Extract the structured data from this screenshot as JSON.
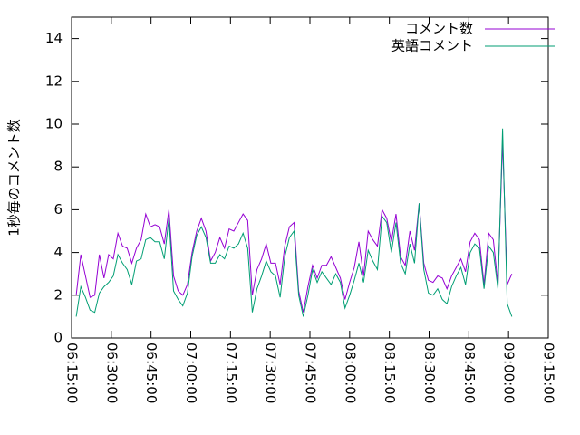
{
  "chart_data": {
    "type": "line",
    "ylabel": "1秒毎のコメント数",
    "x": [
      "06:16:45",
      "06:18:30",
      "06:20:15",
      "06:22:00",
      "06:23:45",
      "06:25:30",
      "06:27:15",
      "06:29:00",
      "06:30:45",
      "06:32:30",
      "06:34:15",
      "06:36:00",
      "06:37:45",
      "06:39:30",
      "06:41:15",
      "06:43:00",
      "06:44:45",
      "06:46:30",
      "06:48:15",
      "06:50:00",
      "06:51:45",
      "06:53:30",
      "06:55:15",
      "06:57:00",
      "06:58:45",
      "07:00:30",
      "07:02:15",
      "07:04:00",
      "07:05:45",
      "07:07:30",
      "07:09:15",
      "07:11:00",
      "07:12:45",
      "07:14:30",
      "07:16:15",
      "07:18:00",
      "07:19:45",
      "07:21:30",
      "07:23:15",
      "07:25:00",
      "07:26:45",
      "07:28:30",
      "07:30:15",
      "07:32:00",
      "07:33:45",
      "07:35:30",
      "07:37:15",
      "07:39:00",
      "07:40:45",
      "07:42:30",
      "07:44:15",
      "07:46:00",
      "07:47:45",
      "07:49:30",
      "07:51:15",
      "07:53:00",
      "07:54:45",
      "07:56:30",
      "07:58:15",
      "08:00:00",
      "08:01:45",
      "08:03:30",
      "08:05:15",
      "08:07:00",
      "08:08:45",
      "08:10:30",
      "08:12:15",
      "08:14:00",
      "08:15:45",
      "08:17:30",
      "08:19:15",
      "08:21:00",
      "08:22:45",
      "08:24:30",
      "08:26:15",
      "08:28:00",
      "08:29:45",
      "08:31:30",
      "08:33:15",
      "08:35:00",
      "08:36:45",
      "08:38:30",
      "08:40:15",
      "08:42:00",
      "08:43:45",
      "08:45:30",
      "08:47:15",
      "08:49:00",
      "08:50:45",
      "08:52:30",
      "08:54:15",
      "08:56:00",
      "08:57:45",
      "08:59:30",
      "09:01:15"
    ],
    "series": [
      {
        "name": "コメント数",
        "color": "#9400d3",
        "values": [
          2.0,
          3.9,
          2.9,
          1.9,
          2.0,
          3.9,
          2.8,
          3.9,
          3.7,
          4.9,
          4.3,
          4.2,
          3.5,
          4.2,
          4.6,
          5.8,
          5.2,
          5.3,
          5.2,
          4.4,
          6.0,
          2.9,
          2.2,
          2.0,
          2.5,
          4.0,
          5.0,
          5.6,
          5.0,
          3.6,
          4.0,
          4.7,
          4.2,
          5.1,
          5.0,
          5.4,
          5.8,
          5.5,
          2.0,
          3.2,
          3.7,
          4.4,
          3.5,
          3.5,
          2.5,
          4.3,
          5.2,
          5.4,
          2.2,
          1.2,
          2.4,
          3.4,
          2.8,
          3.4,
          3.4,
          3.8,
          3.3,
          2.8,
          1.8,
          2.6,
          3.3,
          4.5,
          2.9,
          5.0,
          4.6,
          4.3,
          6.0,
          5.6,
          4.5,
          5.8,
          3.8,
          3.4,
          5.0,
          4.1,
          6.3,
          3.5,
          2.7,
          2.6,
          2.9,
          2.8,
          2.3,
          2.9,
          3.3,
          3.7,
          3.1,
          4.5,
          4.9,
          4.6,
          2.5,
          4.9,
          4.6,
          2.5,
          9.2,
          2.5,
          3.0
        ]
      },
      {
        "name": "英語コメント",
        "color": "#009e73",
        "values": [
          1.0,
          2.4,
          1.9,
          1.3,
          1.2,
          2.1,
          2.4,
          2.6,
          2.9,
          3.9,
          3.5,
          3.2,
          2.5,
          3.6,
          3.7,
          4.6,
          4.7,
          4.5,
          4.5,
          3.7,
          5.6,
          2.2,
          1.8,
          1.5,
          2.1,
          3.8,
          4.8,
          5.2,
          4.7,
          3.5,
          3.5,
          3.9,
          3.7,
          4.3,
          4.2,
          4.4,
          4.9,
          4.2,
          1.2,
          2.3,
          2.9,
          3.6,
          3.1,
          2.9,
          1.9,
          3.8,
          4.7,
          5.0,
          2.0,
          1.0,
          2.0,
          3.2,
          2.6,
          3.1,
          2.8,
          2.5,
          3.0,
          2.6,
          1.4,
          2.0,
          2.7,
          3.5,
          2.6,
          4.1,
          3.6,
          3.2,
          5.7,
          5.4,
          4.0,
          5.4,
          3.5,
          3.0,
          4.4,
          3.5,
          6.3,
          3.2,
          2.1,
          2.0,
          2.3,
          1.8,
          1.6,
          2.4,
          2.9,
          3.3,
          2.5,
          4.0,
          4.4,
          4.2,
          2.3,
          4.3,
          4.0,
          2.3,
          9.8,
          1.6,
          1.0
        ]
      }
    ],
    "xlim": [
      "06:15:00",
      "09:15:00"
    ],
    "xticks": [
      "06:15:00",
      "06:30:00",
      "06:45:00",
      "07:00:00",
      "07:15:00",
      "07:30:00",
      "07:45:00",
      "08:00:00",
      "08:15:00",
      "08:30:00",
      "08:45:00",
      "09:00:00",
      "09:15:00"
    ],
    "ylim": [
      0,
      15
    ],
    "yticks": [
      0,
      2,
      4,
      6,
      8,
      10,
      12,
      14
    ],
    "legend": "top-right",
    "grid": false
  }
}
